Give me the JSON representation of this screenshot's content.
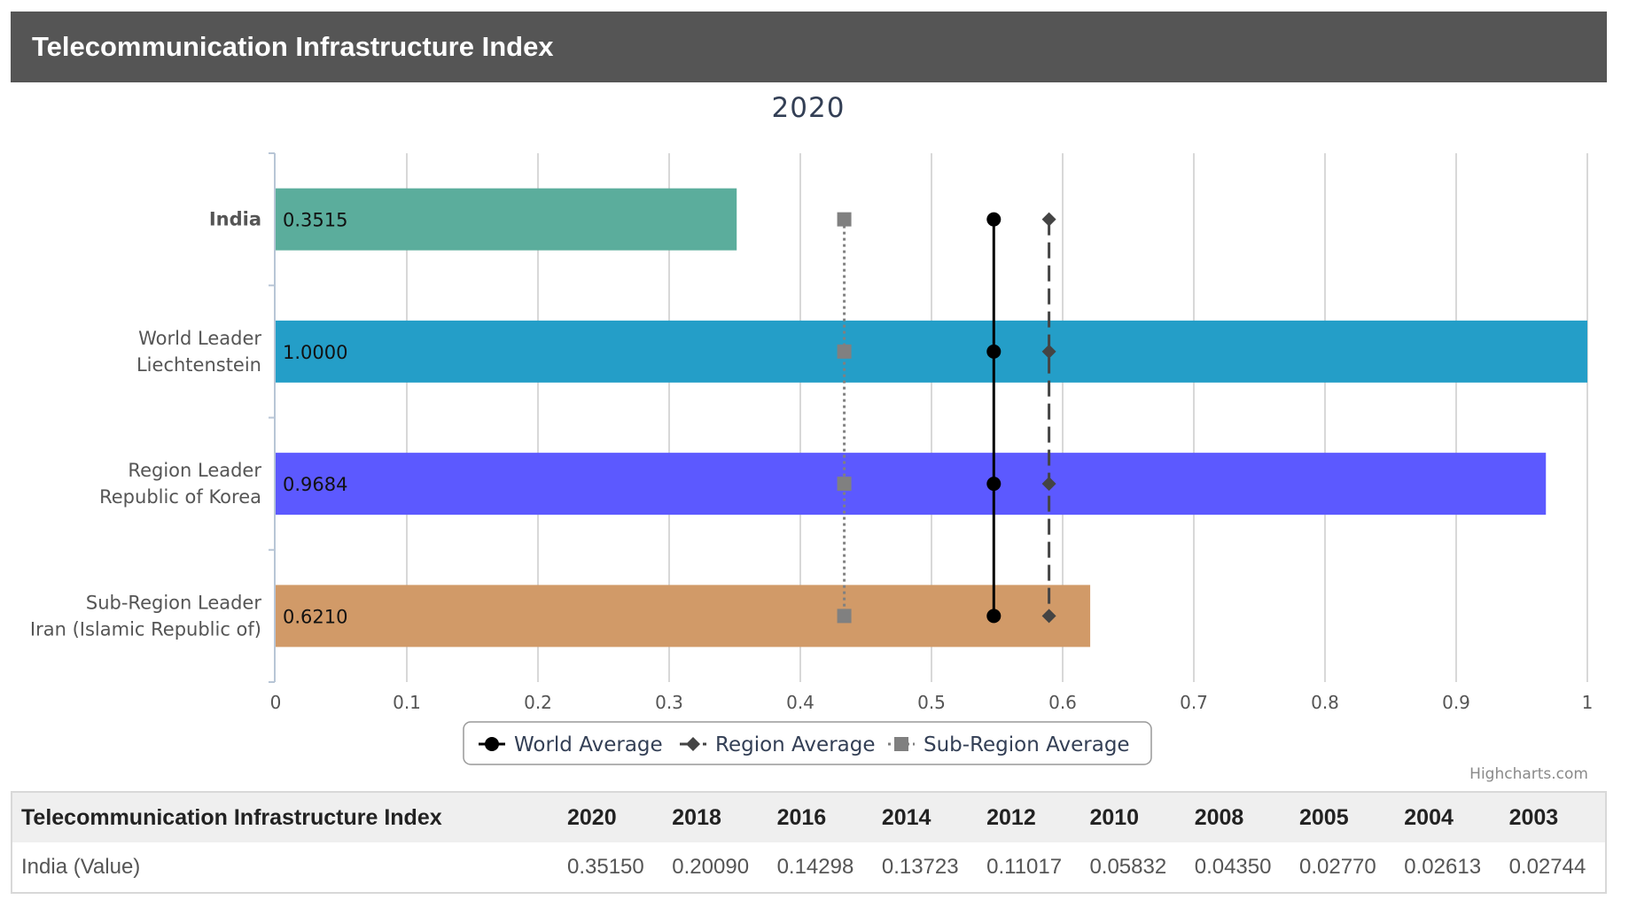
{
  "header": {
    "title": "Telecommunication Infrastructure Index"
  },
  "colors": {
    "header_bg": "#555555",
    "india": "#5bad9c",
    "world_leader": "#249ec8",
    "region_leader": "#5c59ff",
    "subregion_leader": "#d19a68",
    "world_avg": "#000000",
    "region_avg": "#444444",
    "subregion_avg": "#808080"
  },
  "chart_data": {
    "type": "bar",
    "title": "2020",
    "orientation": "horizontal",
    "xlim": [
      0,
      1
    ],
    "ticks": [
      "0",
      "0.1",
      "0.2",
      "0.3",
      "0.4",
      "0.5",
      "0.6",
      "0.7",
      "0.8",
      "0.9",
      "1"
    ],
    "grid": true,
    "categories": [
      {
        "lines": [
          "India"
        ],
        "bold": true
      },
      {
        "lines": [
          "World Leader",
          "Liechtenstein"
        ],
        "bold": false
      },
      {
        "lines": [
          "Region Leader",
          "Republic of Korea"
        ],
        "bold": false
      },
      {
        "lines": [
          "Sub-Region Leader",
          "Iran (Islamic Republic of)"
        ],
        "bold": false
      }
    ],
    "values": [
      0.3515,
      1.0,
      0.9684,
      0.621
    ],
    "value_labels": [
      "0.3515",
      "1.0000",
      "0.9684",
      "0.6210"
    ],
    "series": [
      {
        "name": "World Average",
        "value": 0.5475,
        "marker": "circle",
        "dash": "solid"
      },
      {
        "name": "Region Average",
        "value": 0.5896,
        "marker": "diamond",
        "dash": "dash"
      },
      {
        "name": "Sub-Region Average",
        "value": 0.4335,
        "marker": "square",
        "dash": "dot"
      }
    ],
    "legend_position": "bottom-center"
  },
  "credits": "Highcharts.com",
  "table": {
    "headers": [
      "Telecommunication Infrastructure Index",
      "2020",
      "2018",
      "2016",
      "2014",
      "2012",
      "2010",
      "2008",
      "2005",
      "2004",
      "2003"
    ],
    "rows": [
      [
        "India (Value)",
        "0.35150",
        "0.20090",
        "0.14298",
        "0.13723",
        "0.11017",
        "0.05832",
        "0.04350",
        "0.02770",
        "0.02613",
        "0.02744"
      ]
    ]
  }
}
